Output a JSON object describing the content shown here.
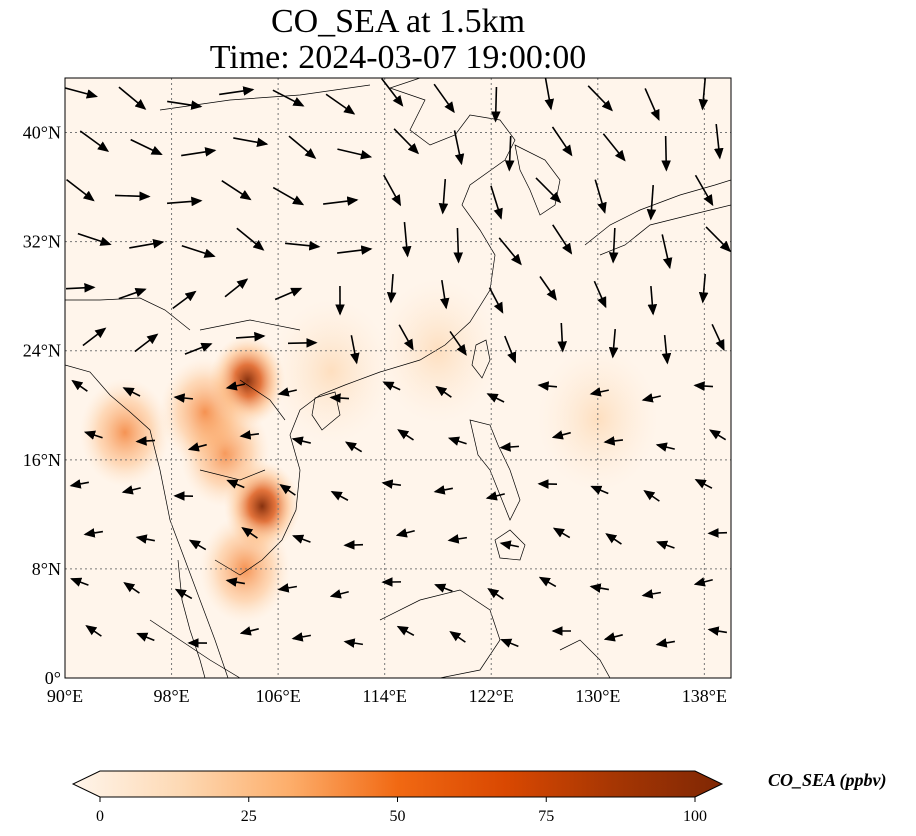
{
  "title": {
    "line1": "CO_SEA at 1.5km",
    "line2": "Time: 2024-03-07 19:00:00"
  },
  "map": {
    "lon_range": [
      90,
      140
    ],
    "lat_range": [
      0,
      44
    ],
    "lon_ticks": [
      {
        "value": 90,
        "label": "90°E"
      },
      {
        "value": 98,
        "label": "98°E"
      },
      {
        "value": 106,
        "label": "106°E"
      },
      {
        "value": 114,
        "label": "114°E"
      },
      {
        "value": 122,
        "label": "122°E"
      },
      {
        "value": 130,
        "label": "130°E"
      },
      {
        "value": 138,
        "label": "138°E"
      }
    ],
    "lat_ticks": [
      {
        "value": 0,
        "label": "0°"
      },
      {
        "value": 8,
        "label": "8°N"
      },
      {
        "value": 16,
        "label": "16°N"
      },
      {
        "value": 24,
        "label": "24°N"
      },
      {
        "value": 32,
        "label": "32°N"
      },
      {
        "value": 40,
        "label": "40°N"
      }
    ],
    "gridlines": true,
    "background_color": "#fff5eb",
    "hotspots": [
      {
        "lon": 104.8,
        "lat": 12.6,
        "value": 85
      },
      {
        "lon": 103.7,
        "lat": 21.8,
        "value": 80
      },
      {
        "lon": 102.0,
        "lat": 16.5,
        "value": 50
      },
      {
        "lon": 94.5,
        "lat": 18.0,
        "value": 35
      },
      {
        "lon": 103.5,
        "lat": 8.0,
        "value": 30
      },
      {
        "lon": 100.5,
        "lat": 19.5,
        "value": 25
      },
      {
        "lon": 110.0,
        "lat": 22.5,
        "value": 18
      },
      {
        "lon": 118.0,
        "lat": 24.0,
        "value": 12
      },
      {
        "lon": 130.0,
        "lat": 19.0,
        "value": 10
      }
    ]
  },
  "colorbar": {
    "min": 0,
    "max": 100,
    "ticks": [
      "0",
      "25",
      "50",
      "75",
      "100"
    ],
    "label": "CO_SEA (ppbv)",
    "colors": [
      "#fff5eb",
      "#fdd9b4",
      "#fdae6b",
      "#f16913",
      "#d94801",
      "#a63603",
      "#7f2704"
    ]
  }
}
